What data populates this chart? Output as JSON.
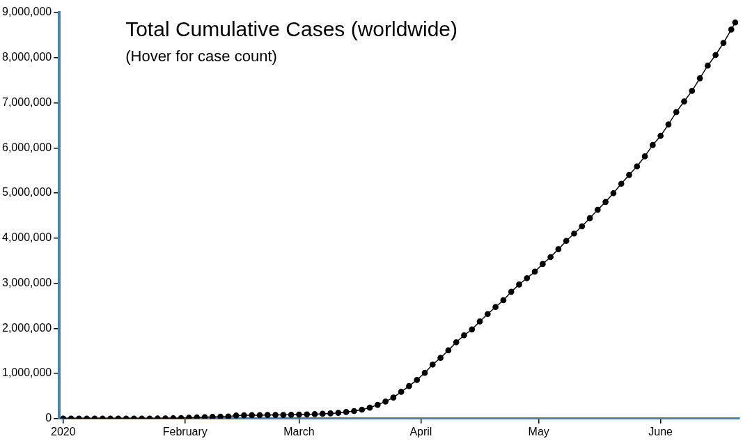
{
  "chart_data": {
    "type": "line",
    "title": "Total Cumulative Cases (worldwide)",
    "subtitle": "(Hover for case count)",
    "x": [
      "2020-01-01",
      "2020-01-03",
      "2020-01-05",
      "2020-01-07",
      "2020-01-09",
      "2020-01-11",
      "2020-01-13",
      "2020-01-15",
      "2020-01-17",
      "2020-01-19",
      "2020-01-21",
      "2020-01-23",
      "2020-01-25",
      "2020-01-27",
      "2020-01-29",
      "2020-01-31",
      "2020-02-02",
      "2020-02-04",
      "2020-02-06",
      "2020-02-08",
      "2020-02-10",
      "2020-02-12",
      "2020-02-14",
      "2020-02-16",
      "2020-02-18",
      "2020-02-20",
      "2020-02-22",
      "2020-02-24",
      "2020-02-26",
      "2020-02-28",
      "2020-03-01",
      "2020-03-03",
      "2020-03-05",
      "2020-03-07",
      "2020-03-09",
      "2020-03-11",
      "2020-03-13",
      "2020-03-15",
      "2020-03-17",
      "2020-03-19",
      "2020-03-21",
      "2020-03-23",
      "2020-03-25",
      "2020-03-27",
      "2020-03-29",
      "2020-03-31",
      "2020-04-02",
      "2020-04-04",
      "2020-04-06",
      "2020-04-08",
      "2020-04-10",
      "2020-04-12",
      "2020-04-14",
      "2020-04-16",
      "2020-04-18",
      "2020-04-20",
      "2020-04-22",
      "2020-04-24",
      "2020-04-26",
      "2020-04-28",
      "2020-04-30",
      "2020-05-02",
      "2020-05-04",
      "2020-05-06",
      "2020-05-08",
      "2020-05-10",
      "2020-05-12",
      "2020-05-14",
      "2020-05-16",
      "2020-05-18",
      "2020-05-20",
      "2020-05-22",
      "2020-05-24",
      "2020-05-26",
      "2020-05-28",
      "2020-05-30",
      "2020-06-01",
      "2020-06-03",
      "2020-06-05",
      "2020-06-07",
      "2020-06-09",
      "2020-06-11",
      "2020-06-13",
      "2020-06-15",
      "2020-06-17",
      "2020-06-19",
      "2020-06-20"
    ],
    "series": [
      {
        "color": "#000000",
        "values": [
          0,
          0,
          0,
          0,
          0,
          0,
          0,
          0,
          0,
          0,
          0,
          650,
          1400,
          2900,
          6100,
          9900,
          17000,
          24500,
          31000,
          37000,
          43000,
          45000,
          67000,
          71000,
          75000,
          76000,
          79000,
          80000,
          81000,
          84000,
          88000,
          93000,
          98000,
          106000,
          114000,
          126000,
          145000,
          167000,
          198000,
          242000,
          305000,
          378000,
          467000,
          593000,
          720000,
          857000,
          1013000,
          1197000,
          1346000,
          1512000,
          1691000,
          1846000,
          1976000,
          2152000,
          2317000,
          2472000,
          2623000,
          2810000,
          2971000,
          3112000,
          3257000,
          3426000,
          3580000,
          3755000,
          3939000,
          4101000,
          4262000,
          4442000,
          4628000,
          4802000,
          4996000,
          5205000,
          5401000,
          5590000,
          5812000,
          6063000,
          6267000,
          6520000,
          6794000,
          7030000,
          7264000,
          7543000,
          7823000,
          8058000,
          8327000,
          8624000,
          8780000
        ]
      }
    ],
    "xlim": [
      "2019-12-31",
      "2020-06-21"
    ],
    "xticks": [
      {
        "value": "2020-01-01",
        "label": "2020"
      },
      {
        "value": "2020-02-01",
        "label": "February"
      },
      {
        "value": "2020-03-01",
        "label": "March"
      },
      {
        "value": "2020-04-01",
        "label": "April"
      },
      {
        "value": "2020-05-01",
        "label": "May"
      },
      {
        "value": "2020-06-01",
        "label": "June"
      }
    ],
    "ylim": [
      0,
      9000000
    ],
    "yticks": [
      {
        "value": 0,
        "label": "0"
      },
      {
        "value": 1000000,
        "label": "1,000,000"
      },
      {
        "value": 2000000,
        "label": "2,000,000"
      },
      {
        "value": 3000000,
        "label": "3,000,000"
      },
      {
        "value": 4000000,
        "label": "4,000,000"
      },
      {
        "value": 5000000,
        "label": "5,000,000"
      },
      {
        "value": 6000000,
        "label": "6,000,000"
      },
      {
        "value": 7000000,
        "label": "7,000,000"
      },
      {
        "value": 8000000,
        "label": "8,000,000"
      },
      {
        "value": 9000000,
        "label": "9,000,000"
      }
    ],
    "grid": false,
    "legend": false,
    "marker": "circle",
    "line_style": "solid"
  }
}
